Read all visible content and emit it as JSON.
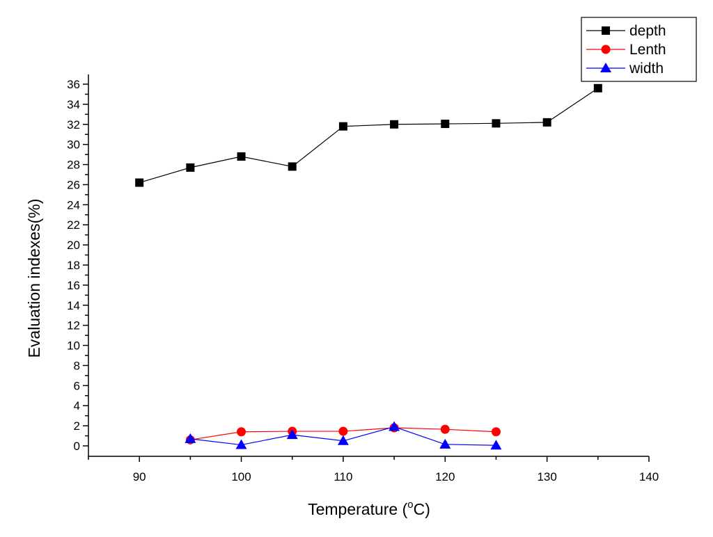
{
  "chart_data": {
    "type": "line",
    "title": "",
    "xlabel": "Temperature (",
    "xlabel_unit_sup": "o",
    "xlabel_unit_end": "C)",
    "ylabel": "Evaluation indexes(%)",
    "xlim": [
      85,
      140
    ],
    "ylim": [
      -1,
      37
    ],
    "x_major_ticks": [
      90,
      100,
      110,
      120,
      130,
      140
    ],
    "x_tick_labels": [
      "90",
      "100",
      "110",
      "120",
      "130",
      "140"
    ],
    "y_major_ticks": [
      0,
      2,
      4,
      6,
      8,
      10,
      12,
      14,
      16,
      18,
      20,
      22,
      24,
      26,
      28,
      30,
      32,
      34,
      36
    ],
    "y_tick_labels": [
      "0",
      "2",
      "4",
      "6",
      "8",
      "10",
      "12",
      "14",
      "16",
      "18",
      "20",
      "22",
      "24",
      "26",
      "28",
      "30",
      "32",
      "34",
      "36"
    ],
    "grid": false,
    "legend_position": "top-right",
    "series": [
      {
        "name": "depth",
        "color": "#000000",
        "marker": "square",
        "x": [
          90,
          95,
          100,
          105,
          110,
          115,
          120,
          125,
          130,
          135
        ],
        "values": [
          26.2,
          27.7,
          28.8,
          27.8,
          31.8,
          32.0,
          32.05,
          32.1,
          32.2,
          35.6
        ]
      },
      {
        "name": "Lenth",
        "color": "#ff0000",
        "marker": "circle",
        "x": [
          95,
          100,
          105,
          110,
          115,
          120,
          125
        ],
        "values": [
          0.6,
          1.4,
          1.45,
          1.45,
          1.8,
          1.65,
          1.4
        ]
      },
      {
        "name": "width",
        "color": "#0000ff",
        "marker": "triangle",
        "x": [
          95,
          100,
          105,
          110,
          115,
          120,
          125
        ],
        "values": [
          0.7,
          0.1,
          1.1,
          0.5,
          1.9,
          0.15,
          0.05
        ]
      }
    ]
  }
}
